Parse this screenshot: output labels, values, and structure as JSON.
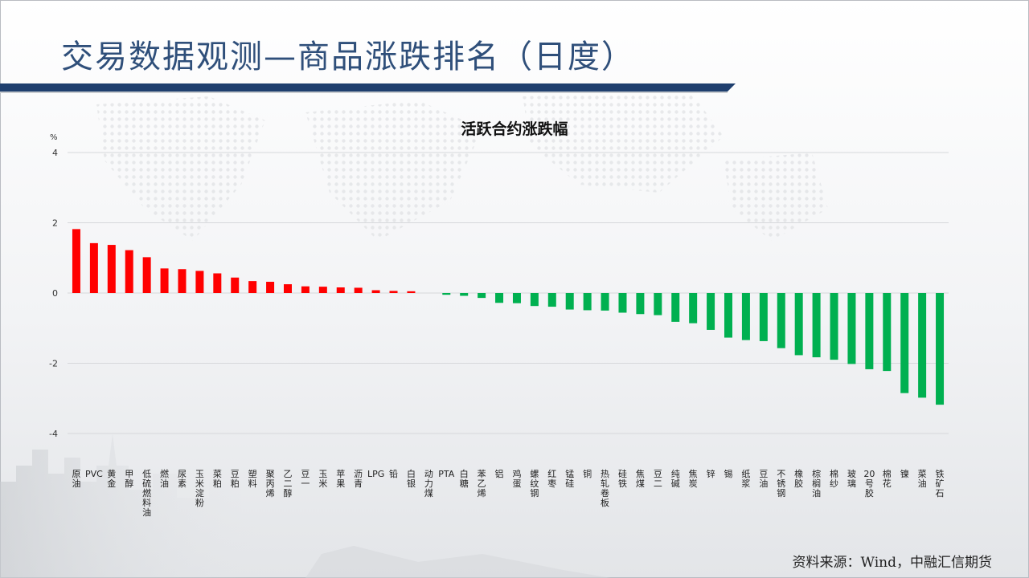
{
  "header": {
    "title": "交易数据观测—商品涨跌排名（日度）"
  },
  "footer": {
    "source": "资料来源：Wind，中融汇信期货"
  },
  "colors": {
    "up": "#ff0000",
    "down": "#00b050",
    "title": "#2f4f7a",
    "rule": "#1f3f6e"
  },
  "chart_data": {
    "type": "bar",
    "title": "活跃合约涨跌幅",
    "ylabel": "%",
    "ylim": [
      -4,
      4
    ],
    "yticks": [
      4,
      2,
      0,
      -2,
      -4
    ],
    "grid": true,
    "categories": [
      "原油",
      "PVC",
      "黄金",
      "甲醇",
      "低硫燃料油",
      "燃油",
      "尿素",
      "玉米淀粉",
      "菜粕",
      "豆粕",
      "塑料",
      "聚丙烯",
      "乙二醇",
      "豆一",
      "玉米",
      "苹果",
      "沥青",
      "LPG",
      "铅",
      "白银",
      "动力煤",
      "PTA",
      "白糖",
      "苯乙烯",
      "铝",
      "鸡蛋",
      "螺纹钢",
      "红枣",
      "锰硅",
      "铜",
      "热轧卷板",
      "硅铁",
      "焦煤",
      "豆二",
      "纯碱",
      "焦炭",
      "锌",
      "锡",
      "纸浆",
      "豆油",
      "不锈钢",
      "橡胶",
      "棕榈油",
      "棉纱",
      "玻璃",
      "20号胶",
      "棉花",
      "镍",
      "菜油",
      "铁矿石"
    ],
    "values": [
      1.82,
      1.42,
      1.37,
      1.22,
      1.02,
      0.7,
      0.68,
      0.63,
      0.56,
      0.44,
      0.34,
      0.32,
      0.25,
      0.19,
      0.18,
      0.16,
      0.15,
      0.08,
      0.06,
      0.05,
      0.0,
      -0.05,
      -0.08,
      -0.14,
      -0.28,
      -0.29,
      -0.37,
      -0.39,
      -0.47,
      -0.49,
      -0.5,
      -0.56,
      -0.6,
      -0.63,
      -0.82,
      -0.86,
      -1.05,
      -1.27,
      -1.34,
      -1.37,
      -1.57,
      -1.77,
      -1.83,
      -1.9,
      -2.02,
      -2.17,
      -2.22,
      -2.85,
      -2.98,
      -3.18
    ]
  }
}
